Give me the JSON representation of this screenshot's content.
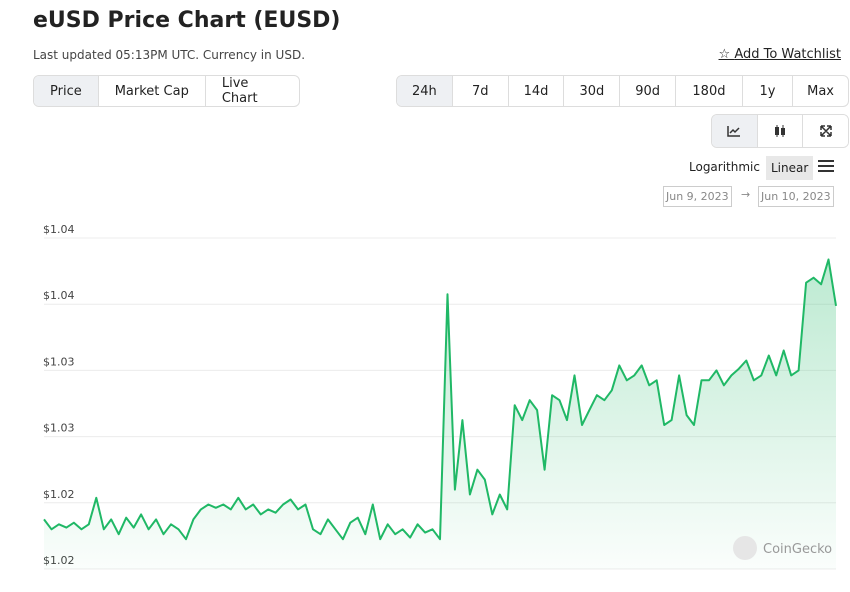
{
  "header": {
    "title": "eUSD Price Chart (EUSD)",
    "subtitle": "Last updated 05:13PM UTC. Currency in USD.",
    "watchlist": "Add To Watchlist"
  },
  "tabs": [
    "Price",
    "Market Cap",
    "Live Chart"
  ],
  "ranges": [
    "24h",
    "7d",
    "14d",
    "30d",
    "90d",
    "180d",
    "1y",
    "Max"
  ],
  "scale_options": [
    "Logarithmic",
    "Linear"
  ],
  "date_range": {
    "from": "Jun 9, 2023",
    "to": "Jun 10, 2023"
  },
  "watermark": "CoinGecko",
  "chart_data": {
    "type": "line",
    "color": "#20b866",
    "grid": true,
    "ylim": [
      1.02,
      1.04
    ],
    "yticks": [
      {
        "value": 1.02,
        "label": "$1.02"
      },
      {
        "value": 1.024,
        "label": "$1.02"
      },
      {
        "value": 1.028,
        "label": "$1.03"
      },
      {
        "value": 1.032,
        "label": "$1.03"
      },
      {
        "value": 1.036,
        "label": "$1.04"
      },
      {
        "value": 1.04,
        "label": "$1.04"
      }
    ],
    "values": [
      1.023,
      1.0224,
      1.0227,
      1.0225,
      1.0228,
      1.0224,
      1.0227,
      1.0243,
      1.0224,
      1.023,
      1.0221,
      1.0231,
      1.0225,
      1.0233,
      1.0224,
      1.023,
      1.0221,
      1.0227,
      1.0224,
      1.0218,
      1.023,
      1.0236,
      1.0239,
      1.0237,
      1.0239,
      1.0236,
      1.0243,
      1.0236,
      1.0239,
      1.0233,
      1.0236,
      1.0234,
      1.0239,
      1.0242,
      1.0236,
      1.0239,
      1.0224,
      1.0221,
      1.023,
      1.0224,
      1.0218,
      1.0228,
      1.0231,
      1.0221,
      1.0239,
      1.0218,
      1.0227,
      1.0221,
      1.0224,
      1.0219,
      1.0227,
      1.0222,
      1.0224,
      1.0218,
      1.0366,
      1.0248,
      1.029,
      1.0245,
      1.026,
      1.0254,
      1.0233,
      1.0245,
      1.0236,
      1.0299,
      1.029,
      1.0302,
      1.0296,
      1.026,
      1.0305,
      1.0302,
      1.029,
      1.0317,
      1.0287,
      1.0296,
      1.0305,
      1.0302,
      1.0308,
      1.0323,
      1.0314,
      1.0317,
      1.0323,
      1.0311,
      1.0314,
      1.0287,
      1.029,
      1.0317,
      1.0293,
      1.0287,
      1.0314,
      1.0314,
      1.032,
      1.0311,
      1.0317,
      1.0321,
      1.0326,
      1.0314,
      1.0317,
      1.0329,
      1.0317,
      1.0332,
      1.0317,
      1.032,
      1.0373,
      1.0376,
      1.0372,
      1.0387,
      1.0359
    ]
  }
}
